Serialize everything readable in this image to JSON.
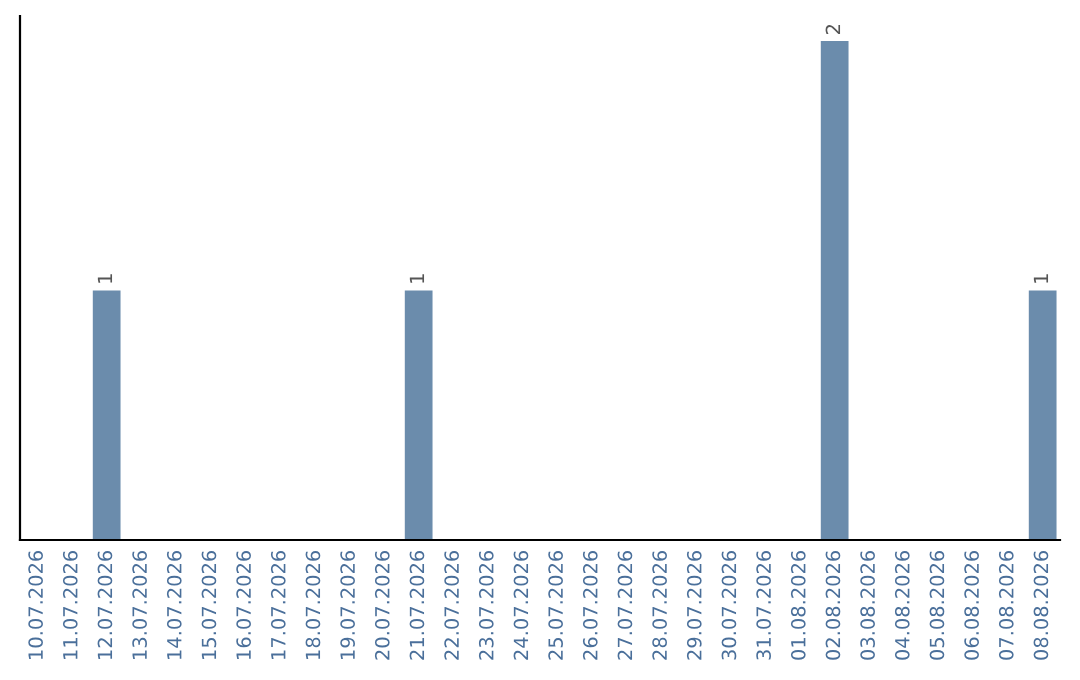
{
  "chart_data": {
    "type": "bar",
    "categories": [
      "10.07.2026",
      "11.07.2026",
      "12.07.2026",
      "13.07.2026",
      "14.07.2026",
      "15.07.2026",
      "16.07.2026",
      "17.07.2026",
      "18.07.2026",
      "19.07.2026",
      "20.07.2026",
      "21.07.2026",
      "22.07.2026",
      "23.07.2026",
      "24.07.2026",
      "25.07.2026",
      "26.07.2026",
      "27.07.2026",
      "28.07.2026",
      "29.07.2026",
      "30.07.2026",
      "31.07.2026",
      "01.08.2026",
      "02.08.2026",
      "03.08.2026",
      "04.08.2026",
      "05.08.2026",
      "06.08.2026",
      "07.08.2026",
      "08.08.2026"
    ],
    "values": [
      0,
      0,
      1,
      0,
      0,
      0,
      0,
      0,
      0,
      0,
      0,
      1,
      0,
      0,
      0,
      0,
      0,
      0,
      0,
      0,
      0,
      0,
      0,
      2,
      0,
      0,
      0,
      0,
      0,
      1
    ],
    "value_labels": [
      null,
      null,
      "1",
      null,
      null,
      null,
      null,
      null,
      null,
      null,
      null,
      "1",
      null,
      null,
      null,
      null,
      null,
      null,
      null,
      null,
      null,
      null,
      null,
      "2",
      null,
      null,
      null,
      null,
      null,
      "1"
    ],
    "color": "#6b8cac",
    "ylim": [
      0,
      2.1
    ],
    "tick_labels": "x",
    "grid": false
  }
}
